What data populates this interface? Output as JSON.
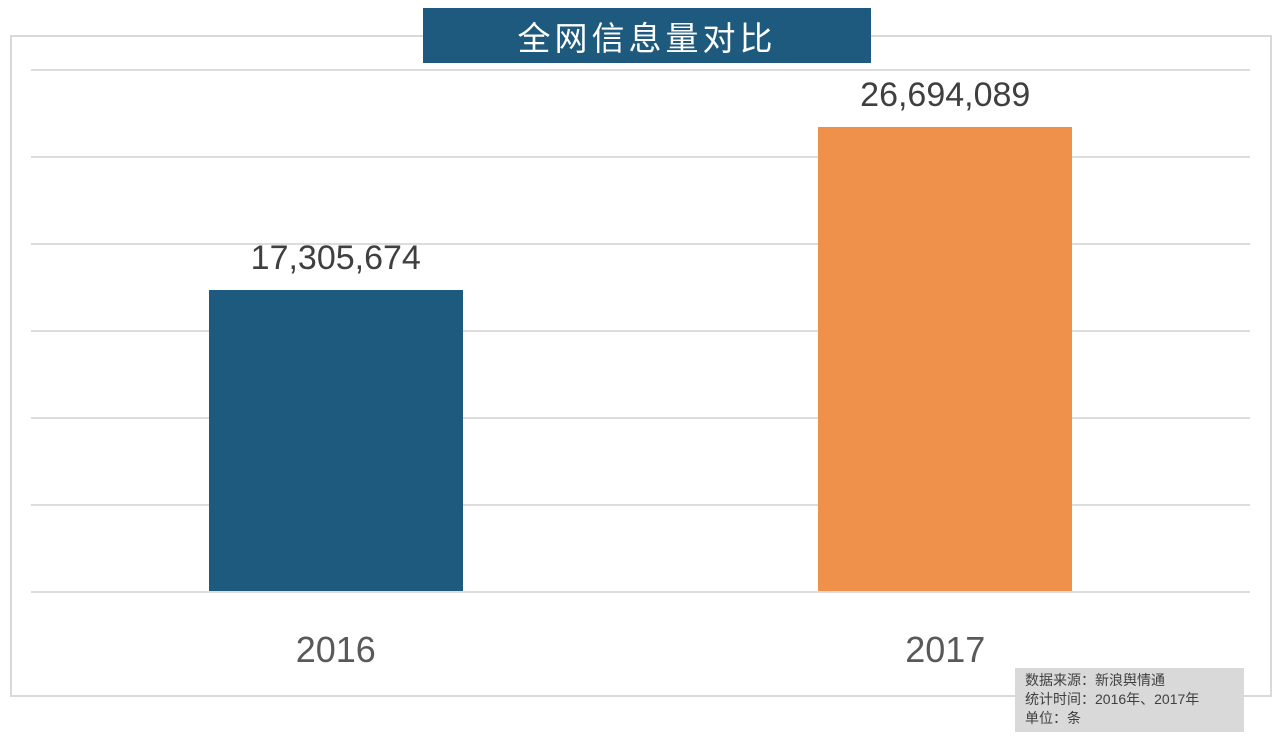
{
  "chart_data": {
    "type": "bar",
    "title": "全网信息量对比",
    "categories": [
      "2016",
      "2017"
    ],
    "values": [
      17305674,
      26694089
    ],
    "value_labels": [
      "17,305,674",
      "26,694,089"
    ],
    "bar_colors": [
      "#1E5A7D",
      "#F0914B"
    ],
    "xlabel": "",
    "ylabel": "",
    "ylim": [
      0,
      30000000
    ],
    "gridline_interval": 5000000,
    "grid": true,
    "legend": false
  },
  "source_note": {
    "line1": "数据来源：新浪舆情通",
    "line2": "统计时间：2016年、2017年",
    "line3": "单位：条"
  },
  "colors": {
    "accent_teal": "#1E5A7D",
    "accent_orange": "#F0914B",
    "grid_line": "#DCDCDC",
    "plot_border": "#D9D9D9",
    "value_text": "#3F3F3F",
    "category_text": "#595959",
    "note_bg": "#D9D9D9",
    "note_text": "#404040",
    "title_bg": "#1E5A7D",
    "title_text": "#FFFFFF"
  }
}
